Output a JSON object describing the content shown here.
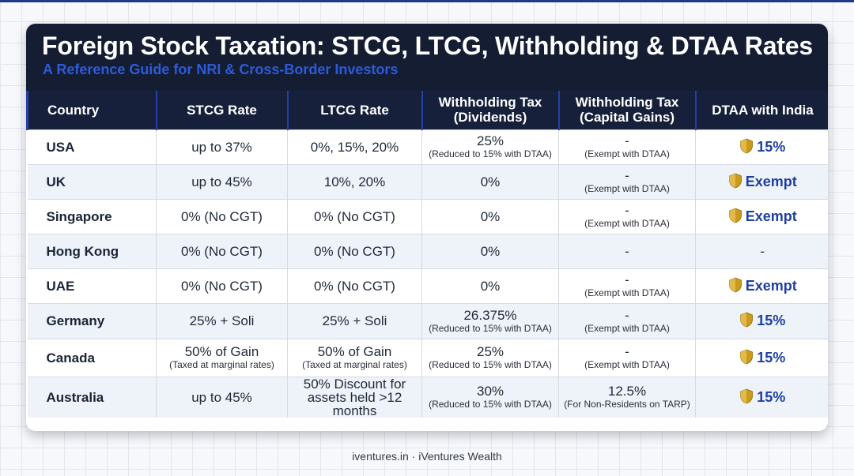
{
  "title": "Foreign Stock Taxation: STCG, LTCG, Withholding & DTAA Rates",
  "subtitle": "A Reference Guide for NRI & Cross-Border Investors",
  "columns": [
    "Country",
    "STCG Rate",
    "LTCG Rate",
    "Withholding Tax (Dividends)",
    "Withholding Tax (Capital Gains)",
    "DTAA with India"
  ],
  "rows": [
    {
      "country": "USA",
      "stcg": {
        "main": "up to 37%",
        "sub": ""
      },
      "ltcg": {
        "main": "0%, 15%, 20%",
        "sub": ""
      },
      "wht_div": {
        "main": "25%",
        "sub": "(Reduced to 15% with DTAA)"
      },
      "wht_cg": {
        "main": "-",
        "sub": "(Exempt with DTAA)"
      },
      "dtaa": "15%"
    },
    {
      "country": "UK",
      "stcg": {
        "main": "up to 45%",
        "sub": ""
      },
      "ltcg": {
        "main": "10%, 20%",
        "sub": ""
      },
      "wht_div": {
        "main": "0%",
        "sub": ""
      },
      "wht_cg": {
        "main": "-",
        "sub": "(Exempt with DTAA)"
      },
      "dtaa": "Exempt"
    },
    {
      "country": "Singapore",
      "stcg": {
        "main": "0% (No CGT)",
        "sub": ""
      },
      "ltcg": {
        "main": "0% (No CGT)",
        "sub": ""
      },
      "wht_div": {
        "main": "0%",
        "sub": ""
      },
      "wht_cg": {
        "main": "-",
        "sub": "(Exempt with DTAA)"
      },
      "dtaa": "Exempt"
    },
    {
      "country": "Hong Kong",
      "stcg": {
        "main": "0% (No CGT)",
        "sub": ""
      },
      "ltcg": {
        "main": "0% (No CGT)",
        "sub": ""
      },
      "wht_div": {
        "main": "0%",
        "sub": ""
      },
      "wht_cg": {
        "main": "-",
        "sub": ""
      },
      "dtaa": "-"
    },
    {
      "country": "UAE",
      "stcg": {
        "main": "0% (No CGT)",
        "sub": ""
      },
      "ltcg": {
        "main": "0% (No CGT)",
        "sub": ""
      },
      "wht_div": {
        "main": "0%",
        "sub": ""
      },
      "wht_cg": {
        "main": "-",
        "sub": "(Exempt with DTAA)"
      },
      "dtaa": "Exempt"
    },
    {
      "country": "Germany",
      "stcg": {
        "main": "25% + Soli",
        "sub": ""
      },
      "ltcg": {
        "main": "25% + Soli",
        "sub": ""
      },
      "wht_div": {
        "main": "26.375%",
        "sub": "(Reduced to 15% with DTAA)"
      },
      "wht_cg": {
        "main": "-",
        "sub": "(Exempt with DTAA)"
      },
      "dtaa": "15%"
    },
    {
      "country": "Canada",
      "stcg": {
        "main": "50% of Gain",
        "sub": "(Taxed at marginal rates)"
      },
      "ltcg": {
        "main": "50% of Gain",
        "sub": "(Taxed at marginal rates)"
      },
      "wht_div": {
        "main": "25%",
        "sub": "(Reduced to 15% with DTAA)"
      },
      "wht_cg": {
        "main": "-",
        "sub": "(Exempt with DTAA)"
      },
      "dtaa": "15%"
    },
    {
      "country": "Australia",
      "stcg": {
        "main": "up to 45%",
        "sub": ""
      },
      "ltcg": {
        "main": "50% Discount for assets held >12 months",
        "sub": ""
      },
      "wht_div": {
        "main": "30%",
        "sub": "(Reduced to 15% with DTAA)"
      },
      "wht_cg": {
        "main": "12.5%",
        "sub": "(For Non-Residents on TARP)"
      },
      "dtaa": "15%"
    }
  ],
  "footer": "iventures.in · iVentures Wealth",
  "colors": {
    "header_bg": "#151d33",
    "accent": "#2d5ad8",
    "shield": "#c99a1c",
    "dtaa_text": "#1d3fa0"
  },
  "icons": {
    "dtaa": "shield-icon"
  }
}
